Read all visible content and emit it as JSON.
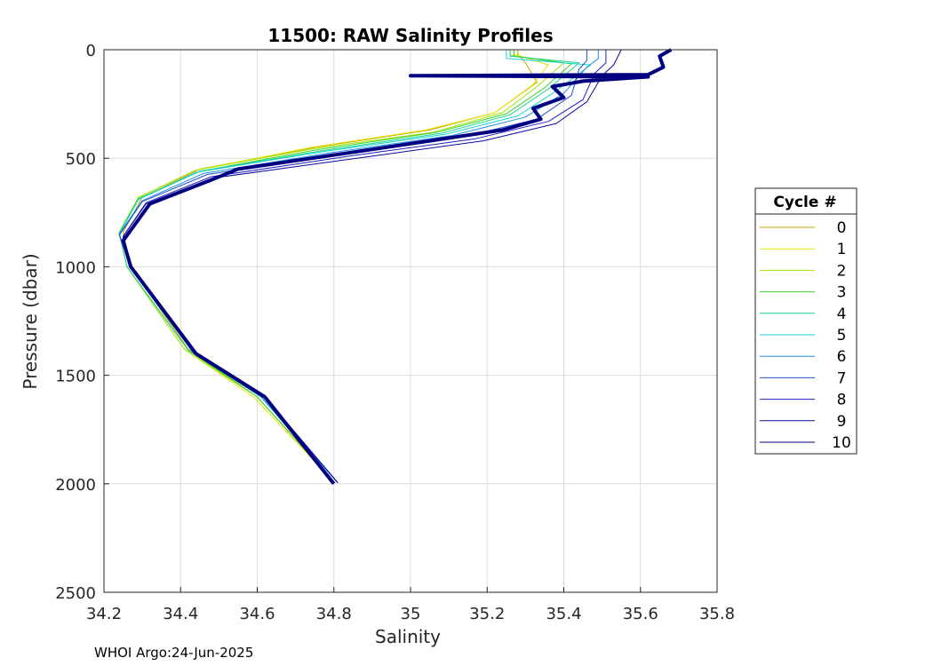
{
  "chart_data": {
    "type": "line",
    "title": "11500: RAW Salinity Profiles",
    "xlabel": "Salinity",
    "ylabel": "Pressure (dbar)",
    "xlim": [
      34.2,
      35.8
    ],
    "ylim": [
      0,
      2500
    ],
    "y_reversed": true,
    "grid": true,
    "x_ticks": [
      "34.2",
      "34.4",
      "34.6",
      "34.8",
      "35",
      "35.2",
      "35.4",
      "35.6",
      "35.8"
    ],
    "x_tick_values": [
      34.2,
      34.4,
      34.6,
      34.8,
      35.0,
      35.2,
      35.4,
      35.6,
      35.8
    ],
    "y_ticks": [
      "0",
      "500",
      "1000",
      "1500",
      "2000",
      "2500"
    ],
    "y_tick_values": [
      0,
      500,
      1000,
      1500,
      2000,
      2500
    ],
    "legend": {
      "title": "Cycle #",
      "placement": "right"
    },
    "series": [
      {
        "name": "0",
        "color": "#c8a000",
        "salinity": [
          35.28,
          35.28,
          35.3,
          35.33,
          35.22,
          35.05,
          34.75,
          34.45,
          34.3,
          34.25,
          34.27,
          34.42,
          34.6,
          34.8
        ],
        "pressure": [
          0,
          20,
          60,
          150,
          290,
          370,
          450,
          550,
          680,
          840,
          1000,
          1380,
          1600,
          1990
        ]
      },
      {
        "name": "1",
        "color": "#e6e600",
        "salinity": [
          35.27,
          35.27,
          35.36,
          35.32,
          35.22,
          35.04,
          34.74,
          34.44,
          34.29,
          34.24,
          34.26,
          34.41,
          34.59,
          34.8
        ],
        "pressure": [
          0,
          20,
          70,
          160,
          290,
          370,
          450,
          555,
          680,
          845,
          1000,
          1380,
          1600,
          1990
        ]
      },
      {
        "name": "2",
        "color": "#9ee600",
        "salinity": [
          35.26,
          35.26,
          35.4,
          35.33,
          35.24,
          35.06,
          34.75,
          34.44,
          34.29,
          34.24,
          34.26,
          34.41,
          34.6,
          34.8
        ],
        "pressure": [
          0,
          25,
          60,
          170,
          290,
          380,
          455,
          555,
          680,
          840,
          1000,
          1380,
          1600,
          1990
        ]
      },
      {
        "name": "3",
        "color": "#3cd230",
        "salinity": [
          35.27,
          35.27,
          35.42,
          35.35,
          35.25,
          35.07,
          34.76,
          34.45,
          34.29,
          34.24,
          34.26,
          34.42,
          34.6,
          34.8
        ],
        "pressure": [
          0,
          30,
          65,
          175,
          295,
          380,
          460,
          560,
          685,
          845,
          1000,
          1385,
          1600,
          1990
        ]
      },
      {
        "name": "4",
        "color": "#19d28c",
        "salinity": [
          35.26,
          35.26,
          35.44,
          35.36,
          35.26,
          35.08,
          34.77,
          34.45,
          34.29,
          34.24,
          34.26,
          34.42,
          34.61,
          34.8
        ],
        "pressure": [
          0,
          30,
          60,
          180,
          300,
          385,
          465,
          560,
          690,
          845,
          1000,
          1385,
          1600,
          1990
        ]
      },
      {
        "name": "5",
        "color": "#19d2d2",
        "salinity": [
          35.25,
          35.25,
          35.47,
          35.38,
          35.28,
          35.09,
          34.77,
          34.44,
          34.29,
          34.24,
          34.27,
          34.43,
          34.61,
          34.81
        ],
        "pressure": [
          0,
          40,
          70,
          190,
          305,
          390,
          470,
          565,
          690,
          850,
          1000,
          1390,
          1600,
          1995
        ]
      },
      {
        "name": "6",
        "color": "#1e8ce6",
        "salinity": [
          35.49,
          35.49,
          35.46,
          35.4,
          35.3,
          35.11,
          34.79,
          34.46,
          34.3,
          34.24,
          34.27,
          34.43,
          34.61,
          34.81
        ],
        "pressure": [
          0,
          40,
          80,
          200,
          310,
          395,
          475,
          570,
          695,
          850,
          1000,
          1390,
          1600,
          1995
        ]
      },
      {
        "name": "7",
        "color": "#1e50d2",
        "salinity": [
          35.46,
          35.46,
          35.44,
          35.42,
          35.33,
          35.14,
          34.81,
          34.47,
          34.3,
          34.24,
          34.27,
          34.44,
          34.62,
          34.81
        ],
        "pressure": [
          0,
          50,
          90,
          210,
          320,
          400,
          480,
          575,
          700,
          855,
          1000,
          1395,
          1600,
          1995
        ]
      },
      {
        "name": "8",
        "color": "#1e1ebe",
        "salinity": [
          35.51,
          35.51,
          35.48,
          35.45,
          35.36,
          35.17,
          34.84,
          34.48,
          34.31,
          34.25,
          34.27,
          34.44,
          34.62,
          34.81
        ],
        "pressure": [
          0,
          60,
          110,
          230,
          330,
          410,
          490,
          585,
          705,
          860,
          1000,
          1395,
          1600,
          1995
        ]
      },
      {
        "name": "9",
        "color": "#0a0aa0",
        "salinity": [
          35.55,
          35.53,
          35.5,
          35.46,
          35.38,
          35.19,
          34.86,
          34.49,
          34.31,
          34.25,
          34.27,
          34.44,
          34.62,
          34.81
        ],
        "pressure": [
          0,
          70,
          120,
          240,
          340,
          420,
          500,
          590,
          710,
          860,
          1000,
          1395,
          1600,
          1995
        ]
      },
      {
        "name": "10",
        "color": "#000080",
        "thick": true,
        "salinity": [
          35.68,
          35.65,
          35.66,
          35.62,
          35.0,
          35.62,
          35.45,
          35.37,
          35.4,
          35.32,
          35.34,
          35.24,
          35.05,
          34.82,
          34.55,
          34.48,
          34.32,
          34.25,
          34.27,
          34.44,
          34.62,
          34.8
        ],
        "pressure": [
          0,
          30,
          80,
          115,
          120,
          125,
          145,
          170,
          220,
          270,
          320,
          370,
          420,
          480,
          550,
          600,
          710,
          880,
          1000,
          1400,
          1600,
          2000
        ]
      }
    ]
  },
  "footer": {
    "text": "WHOI Argo:24-Jun-2025"
  }
}
